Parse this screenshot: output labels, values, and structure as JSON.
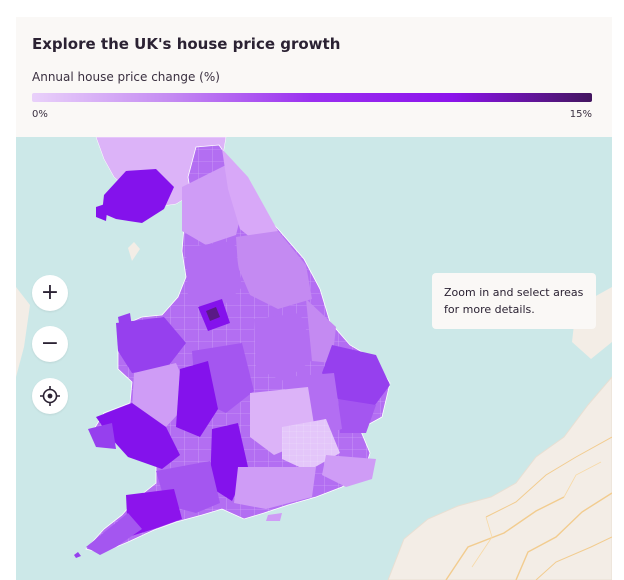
{
  "title": "Explore the UK's house price growth",
  "legend": {
    "label": "Annual house price change (%)",
    "min_label": "0%",
    "max_label": "15%",
    "min_value": 0,
    "max_value": 15,
    "color_stops": [
      "#e9d1fa",
      "#c48af2",
      "#9a2ff0",
      "#8c14ec",
      "#42155e"
    ]
  },
  "controls": {
    "zoom_in": "+",
    "zoom_out": "−"
  },
  "tooltip": {
    "text": "Zoom in and select areas for more details."
  },
  "colors": {
    "sea": "#cce8e8",
    "land": "#f3ede6",
    "lightest": "#e4c6fa",
    "light": "#cf9cf6",
    "medium": "#b36ef2",
    "strong": "#9640ee",
    "deep": "#8412ec",
    "darkest": "#5a1a86"
  }
}
